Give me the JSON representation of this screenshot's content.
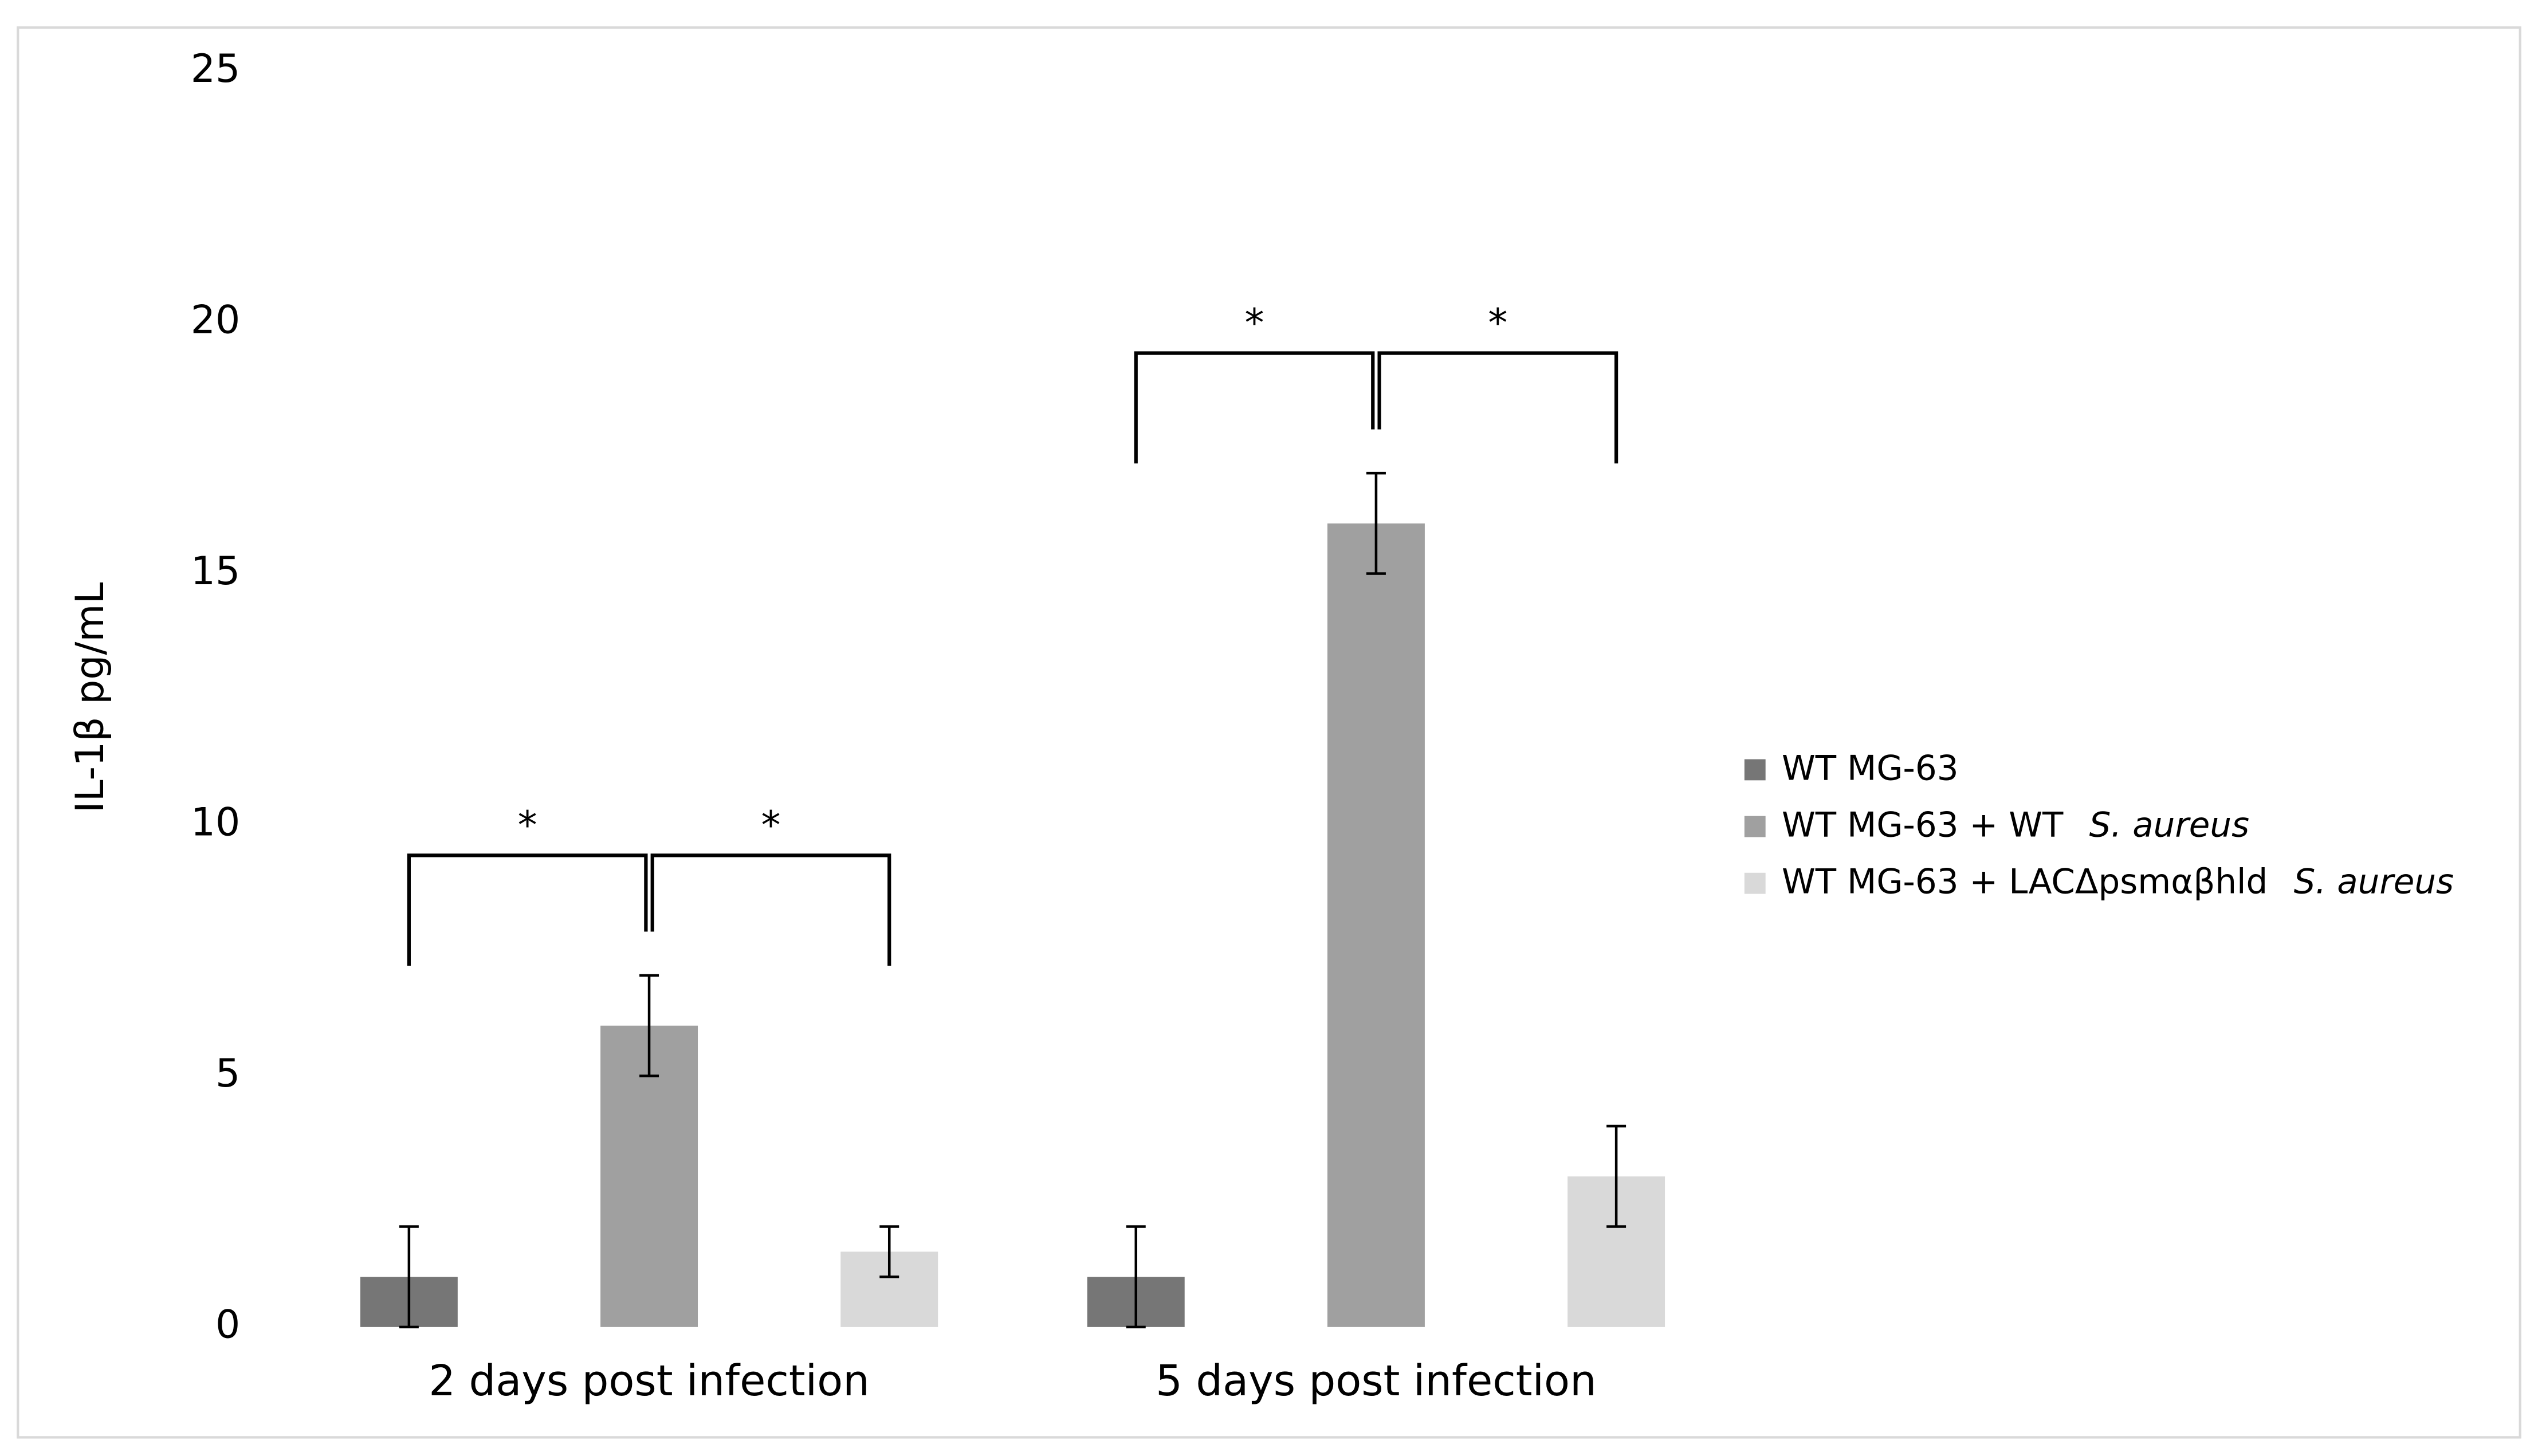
{
  "chart_data": {
    "type": "bar",
    "y_label": "IL-1β pg/mL",
    "categories": [
      "2 days post infection",
      "5 days post infection"
    ],
    "series": [
      {
        "name": "WT MG-63",
        "color": "#767676",
        "values": [
          1,
          1
        ],
        "errors": [
          1,
          1
        ]
      },
      {
        "name": "WT MG-63 + WT",
        "species": "S. aureus",
        "color": "#a0a0a0",
        "values": [
          6,
          16
        ],
        "errors": [
          1,
          1
        ]
      },
      {
        "name": "WT MG-63 + LACΔpsmαβhld",
        "species": "S. aureus",
        "color": "#d9d9d9",
        "values": [
          1.5,
          3
        ],
        "errors": [
          0.5,
          1
        ]
      }
    ],
    "significance": [
      {
        "category": 0,
        "from": 0,
        "to": 1,
        "label": "*"
      },
      {
        "category": 0,
        "from": 1,
        "to": 2,
        "label": "*"
      },
      {
        "category": 1,
        "from": 0,
        "to": 1,
        "label": "*"
      },
      {
        "category": 1,
        "from": 1,
        "to": 2,
        "label": "*"
      }
    ],
    "ylim": [
      0,
      25
    ],
    "yticks": [
      0,
      5,
      10,
      15,
      20,
      25
    ],
    "grid": false,
    "legend": "right"
  }
}
